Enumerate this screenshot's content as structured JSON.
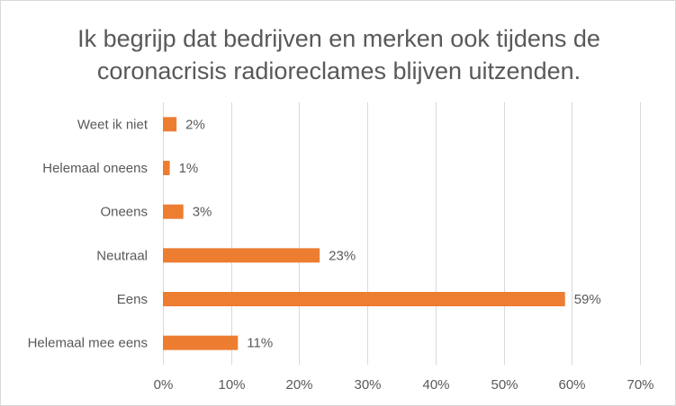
{
  "chart_data": {
    "type": "bar",
    "orientation": "horizontal",
    "title_lines": [
      "Ik begrijp dat bedrijven en merken ook tijdens de",
      "coronacrisis radioreclames blijven uitzenden."
    ],
    "categories": [
      "Weet ik niet",
      "Helemaal oneens",
      "Oneens",
      "Neutraal",
      "Eens",
      "Helemaal mee eens"
    ],
    "values": [
      2,
      1,
      3,
      23,
      59,
      11
    ],
    "data_labels": [
      "2%",
      "1%",
      "3%",
      "23%",
      "59%",
      "11%"
    ],
    "xlim": [
      0,
      70
    ],
    "x_ticks": [
      0,
      10,
      20,
      30,
      40,
      50,
      60,
      70
    ],
    "x_tick_labels": [
      "0%",
      "10%",
      "20%",
      "30%",
      "40%",
      "50%",
      "60%",
      "70%"
    ],
    "grid": "vertical",
    "legend": "none",
    "bar_color": "#ED7D31",
    "grid_color": "#D9D9D9",
    "text_color": "#595959"
  }
}
